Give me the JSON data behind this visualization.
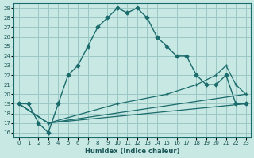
{
  "xlabel": "Humidex (Indice chaleur)",
  "bg_color": "#c8e8e4",
  "grid_color": "#9ac8c4",
  "line_color": "#1a6b6b",
  "xlim": [
    -0.5,
    23.5
  ],
  "ylim": [
    15.5,
    29.5
  ],
  "xticks": [
    0,
    1,
    2,
    3,
    4,
    5,
    6,
    7,
    8,
    9,
    10,
    11,
    12,
    13,
    14,
    15,
    16,
    17,
    18,
    19,
    20,
    21,
    22,
    23
  ],
  "yticks": [
    16,
    17,
    18,
    19,
    20,
    21,
    22,
    23,
    24,
    25,
    26,
    27,
    28,
    29
  ],
  "line1_x": [
    0,
    1,
    2,
    3,
    4,
    5,
    6,
    7,
    8,
    9,
    10,
    11,
    12,
    13,
    14,
    15,
    16,
    17,
    18,
    19,
    20,
    21,
    22,
    23
  ],
  "line1_y": [
    19,
    19,
    17,
    16,
    19,
    22,
    23,
    25,
    27,
    28,
    29,
    28.5,
    29,
    28,
    26,
    25,
    24,
    24,
    22,
    21,
    21,
    22,
    19,
    19
  ],
  "line2_x": [
    0,
    3,
    23
  ],
  "line2_y": [
    19,
    17,
    19
  ],
  "line3_x": [
    0,
    3,
    23
  ],
  "line3_y": [
    19,
    17,
    20
  ],
  "line4_x": [
    0,
    3,
    10,
    15,
    18,
    20,
    21,
    22,
    23
  ],
  "line4_y": [
    19,
    17,
    19,
    20,
    21,
    22,
    23,
    21,
    20
  ]
}
